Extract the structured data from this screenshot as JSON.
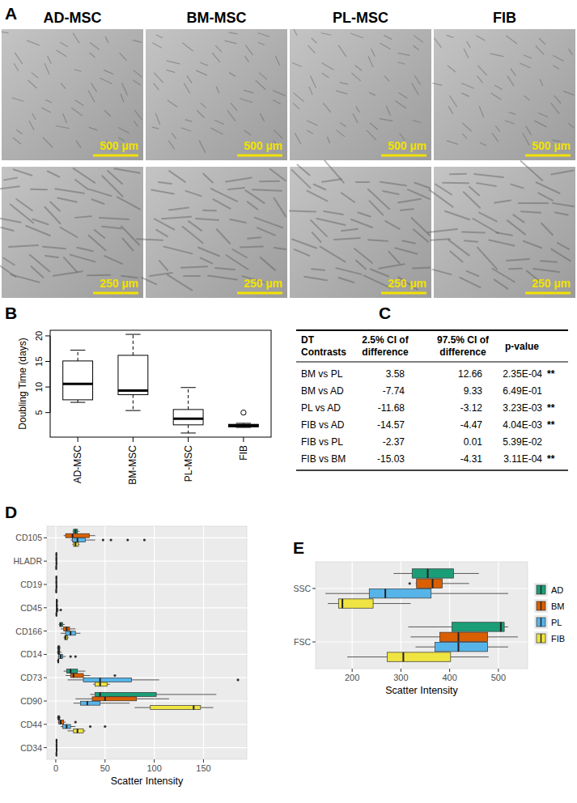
{
  "panel_labels": [
    "A",
    "B",
    "C",
    "D",
    "E"
  ],
  "micrographs": {
    "columns": [
      "AD-MSC",
      "BM-MSC",
      "PL-MSC",
      "FIB"
    ],
    "scale_bars": [
      "500 µm",
      "250 µm"
    ]
  },
  "table": {
    "header": [
      "DT Contrasts",
      "2.5% CI of difference",
      "97.5% CI of difference",
      "p-value"
    ],
    "rows": [
      {
        "contrast": "BM vs PL",
        "ci_low": 3.58,
        "ci_high": 12.66,
        "p_value": "2.35E-04",
        "significance": "**"
      },
      {
        "contrast": "BM vs AD",
        "ci_low": -7.74,
        "ci_high": 9.33,
        "p_value": "6.49E-01"
      },
      {
        "contrast": "PL vs AD",
        "ci_low": -11.68,
        "ci_high": -3.12,
        "p_value": "3.23E-03",
        "significance": "**"
      },
      {
        "contrast": "FIB vs AD",
        "ci_low": -14.57,
        "ci_high": -4.47,
        "p_value": "4.04E-03",
        "significance": "**"
      },
      {
        "contrast": "FIB vs PL",
        "ci_low": -2.37,
        "ci_high": 0.01,
        "p_value": "5.39E-02"
      },
      {
        "contrast": "FIB vs BM",
        "ci_low": -15.03,
        "ci_high": -4.31,
        "p_value": "3.11E-04",
        "significance": "**"
      }
    ]
  },
  "chart_data": [
    {
      "type": "box",
      "categories": [
        "AD-MSC",
        "BM-MSC",
        "PL-MSC",
        "FIB"
      ],
      "ylabel": "Doubling Time (days)",
      "ylim": [
        0.2,
        21.1
      ],
      "yticks": [
        5,
        10,
        15,
        20
      ],
      "boxes": [
        {
          "min": 7,
          "q1": 7.5,
          "median": 10.6,
          "q3": 15.1,
          "max": 17.2,
          "outliers": []
        },
        {
          "min": 5.4,
          "q1": 8.5,
          "median": 9.3,
          "q3": 16.2,
          "max": 20.3,
          "outliers": []
        },
        {
          "min": 1.0,
          "q1": 2.6,
          "median": 3.8,
          "q3": 5.6,
          "max": 9.9,
          "outliers": []
        },
        {
          "min": 2.1,
          "q1": 2.2,
          "median": 2.5,
          "q3": 2.7,
          "max": 2.9,
          "outliers": [
            5.0
          ]
        }
      ]
    },
    {
      "type": "box",
      "orientation": "horizontal",
      "grid": true,
      "categories": [
        "CD105",
        "HLADR",
        "CD19",
        "CD45",
        "CD166",
        "CD14",
        "CD73",
        "CD90",
        "CD44",
        "CD34"
      ],
      "xlabel": "Scatter Intensity",
      "xlim": [
        -9,
        194
      ],
      "xticks": [
        0,
        50,
        100,
        150
      ],
      "series": [
        {
          "color": "#1b9e77",
          "boxes": [
            {
              "min": 17,
              "q1": 18,
              "median": 20,
              "q3": 22,
              "max": 24,
              "outliers": []
            },
            {
              "min": 0,
              "q1": 0.3,
              "median": 0.5,
              "q3": 0.8,
              "max": 1.2,
              "outliers": []
            },
            {
              "min": 0,
              "q1": 0.3,
              "median": 0.5,
              "q3": 0.8,
              "max": 1.2,
              "outliers": []
            },
            {
              "min": 0,
              "q1": 0.5,
              "median": 1,
              "q3": 1.5,
              "max": 2.5,
              "outliers": []
            },
            {
              "min": 3,
              "q1": 4,
              "median": 5,
              "q3": 7,
              "max": 9,
              "outliers": []
            },
            {
              "min": 1,
              "q1": 2,
              "median": 3,
              "q3": 4,
              "max": 5,
              "outliers": []
            },
            {
              "min": 8,
              "q1": 11,
              "median": 15,
              "q3": 22,
              "max": 30,
              "outliers": []
            },
            {
              "min": 35,
              "q1": 40,
              "median": 45,
              "q3": 102,
              "max": 163,
              "outliers": []
            },
            {
              "min": 1,
              "q1": 2,
              "median": 3,
              "q3": 4,
              "max": 5,
              "outliers": []
            },
            {
              "min": 0,
              "q1": 0.4,
              "median": 0.7,
              "q3": 1,
              "max": 1.5,
              "outliers": []
            }
          ]
        },
        {
          "color": "#d95f02",
          "boxes": [
            {
              "min": 8,
              "q1": 10,
              "median": 17,
              "q3": 34,
              "max": 40,
              "outliers": []
            },
            {
              "min": 0,
              "q1": 0.3,
              "median": 0.5,
              "q3": 0.8,
              "max": 1.2,
              "outliers": []
            },
            {
              "min": 0,
              "q1": 0.3,
              "median": 0.5,
              "q3": 0.8,
              "max": 1.2,
              "outliers": []
            },
            {
              "min": 0,
              "q1": 0.5,
              "median": 1,
              "q3": 1.5,
              "max": 2.5,
              "outliers": []
            },
            {
              "min": 5,
              "q1": 8,
              "median": 11,
              "q3": 14,
              "max": 20,
              "outliers": []
            },
            {
              "min": 1,
              "q1": 2,
              "median": 3,
              "q3": 4,
              "max": 6,
              "outliers": []
            },
            {
              "min": 10,
              "q1": 15,
              "median": 18,
              "q3": 28,
              "max": 35,
              "outliers": [
                60
              ]
            },
            {
              "min": 20,
              "q1": 37,
              "median": 50,
              "q3": 82,
              "max": 115,
              "outliers": []
            },
            {
              "min": 2,
              "q1": 3,
              "median": 5,
              "q3": 8,
              "max": 10,
              "outliers": [
                20
              ]
            },
            {
              "min": 0,
              "q1": 0.4,
              "median": 0.7,
              "q3": 1,
              "max": 1.5,
              "outliers": []
            }
          ]
        },
        {
          "color": "#56b4e9",
          "boxes": [
            {
              "min": 15,
              "q1": 17,
              "median": 22,
              "q3": 30,
              "max": 40,
              "outliers": [
                48,
                56,
                73,
                90
              ]
            },
            {
              "min": 0,
              "q1": 0.3,
              "median": 0.6,
              "q3": 1,
              "max": 1.5,
              "outliers": []
            },
            {
              "min": 0,
              "q1": 0.3,
              "median": 0.6,
              "q3": 1,
              "max": 1.5,
              "outliers": []
            },
            {
              "min": 0,
              "q1": 0.5,
              "median": 1,
              "q3": 2,
              "max": 3,
              "outliers": [
                5
              ]
            },
            {
              "min": 5,
              "q1": 10,
              "median": 15,
              "q3": 20,
              "max": 25,
              "outliers": []
            },
            {
              "min": 2,
              "q1": 3,
              "median": 5,
              "q3": 7,
              "max": 10,
              "outliers": [
                15,
                20
              ]
            },
            {
              "min": 12,
              "q1": 28,
              "median": 45,
              "q3": 77,
              "max": 105,
              "outliers": [
                185
              ]
            },
            {
              "min": 18,
              "q1": 25,
              "median": 32,
              "q3": 45,
              "max": 75,
              "outliers": []
            },
            {
              "min": 5,
              "q1": 7,
              "median": 11,
              "q3": 15,
              "max": 20,
              "outliers": [
                35,
                50
              ]
            },
            {
              "min": 0,
              "q1": 0.4,
              "median": 0.8,
              "q3": 1.2,
              "max": 1.8,
              "outliers": []
            }
          ]
        },
        {
          "color": "#f0e442",
          "boxes": [
            {
              "min": 17,
              "q1": 18,
              "median": 20,
              "q3": 23,
              "max": 24,
              "outliers": []
            },
            {
              "min": 0,
              "q1": 0.2,
              "median": 0.4,
              "q3": 0.6,
              "max": 0.8,
              "outliers": []
            },
            {
              "min": 0,
              "q1": 0.2,
              "median": 0.4,
              "q3": 0.6,
              "max": 0.8,
              "outliers": []
            },
            {
              "min": 0,
              "q1": 0.3,
              "median": 0.6,
              "q3": 0.9,
              "max": 1.2,
              "outliers": []
            },
            {
              "min": 8,
              "q1": 9,
              "median": 10,
              "q3": 12,
              "max": 13,
              "outliers": []
            },
            {
              "min": 1,
              "q1": 2,
              "median": 2.5,
              "q3": 3,
              "max": 3.5,
              "outliers": []
            },
            {
              "min": 38,
              "q1": 40,
              "median": 45,
              "q3": 52,
              "max": 55,
              "outliers": []
            },
            {
              "min": 80,
              "q1": 96,
              "median": 140,
              "q3": 147,
              "max": 160,
              "outliers": []
            },
            {
              "min": 12,
              "q1": 18,
              "median": 22,
              "q3": 28,
              "max": 30,
              "outliers": []
            },
            {
              "min": 0,
              "q1": 0.3,
              "median": 0.6,
              "q3": 0.9,
              "max": 1.2,
              "outliers": []
            }
          ]
        }
      ]
    },
    {
      "type": "box",
      "orientation": "horizontal",
      "grid": true,
      "legend": "right",
      "categories": [
        "SSC",
        "FSC"
      ],
      "xlabel": "Scatter Intensity",
      "xlim": [
        125,
        560
      ],
      "xticks": [
        200,
        300,
        400,
        500
      ],
      "series": [
        {
          "name": "AD",
          "color": "#1b9e77",
          "boxes": [
            {
              "min": 285,
              "q1": 323,
              "median": 355,
              "q3": 408,
              "max": 460,
              "outliers": []
            },
            {
              "min": 315,
              "q1": 405,
              "median": 505,
              "q3": 512,
              "max": 520,
              "outliers": []
            }
          ]
        },
        {
          "name": "BM",
          "color": "#d95f02",
          "boxes": [
            {
              "min": 330,
              "q1": 332,
              "median": 365,
              "q3": 385,
              "max": 440,
              "outliers": [
                318
              ]
            },
            {
              "min": 320,
              "q1": 380,
              "median": 418,
              "q3": 478,
              "max": 540,
              "outliers": []
            }
          ]
        },
        {
          "name": "PL",
          "color": "#56b4e9",
          "boxes": [
            {
              "min": 145,
              "q1": 235,
              "median": 268,
              "q3": 362,
              "max": 520,
              "outliers": []
            },
            {
              "min": 330,
              "q1": 370,
              "median": 418,
              "q3": 478,
              "max": 520,
              "outliers": []
            }
          ]
        },
        {
          "name": "FIB",
          "color": "#f0e442",
          "boxes": [
            {
              "min": 150,
              "q1": 172,
              "median": 180,
              "q3": 243,
              "max": 320,
              "outliers": []
            },
            {
              "min": 190,
              "q1": 272,
              "median": 305,
              "q3": 402,
              "max": 480,
              "outliers": []
            }
          ]
        }
      ]
    }
  ]
}
